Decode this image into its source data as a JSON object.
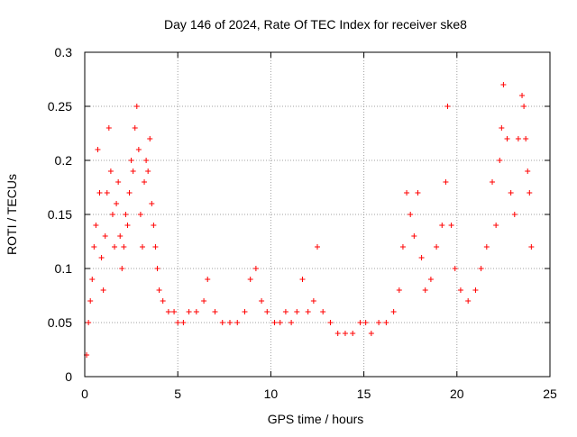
{
  "chart_data": {
    "type": "scatter",
    "title": "Day 146 of 2024, Rate Of TEC Index for receiver ske8",
    "xlabel": "GPS time / hours",
    "ylabel": "ROTI / TECUs",
    "xlim": [
      0,
      25
    ],
    "ylim": [
      0,
      0.3
    ],
    "xticks": [
      0,
      5,
      10,
      15,
      20,
      25
    ],
    "xtick_labels": [
      "0",
      "5",
      "10",
      "15",
      "20",
      "25"
    ],
    "yticks": [
      0,
      0.05,
      0.1,
      0.15,
      0.2,
      0.25,
      0.3
    ],
    "ytick_labels": [
      "0",
      "0.05",
      "0.1",
      "0.15",
      "0.2",
      "0.25",
      "0.3"
    ],
    "grid": true,
    "marker": "+",
    "color": "#ff0000",
    "series": [
      {
        "name": "ROTI",
        "points": [
          [
            0.1,
            0.02
          ],
          [
            0.2,
            0.05
          ],
          [
            0.3,
            0.07
          ],
          [
            0.4,
            0.09
          ],
          [
            0.5,
            0.12
          ],
          [
            0.6,
            0.14
          ],
          [
            0.7,
            0.21
          ],
          [
            0.8,
            0.17
          ],
          [
            0.9,
            0.11
          ],
          [
            1.0,
            0.08
          ],
          [
            1.1,
            0.13
          ],
          [
            1.2,
            0.17
          ],
          [
            1.3,
            0.23
          ],
          [
            1.4,
            0.19
          ],
          [
            1.5,
            0.15
          ],
          [
            1.6,
            0.12
          ],
          [
            1.7,
            0.16
          ],
          [
            1.8,
            0.18
          ],
          [
            1.9,
            0.13
          ],
          [
            2.0,
            0.1
          ],
          [
            2.1,
            0.12
          ],
          [
            2.2,
            0.15
          ],
          [
            2.3,
            0.14
          ],
          [
            2.4,
            0.17
          ],
          [
            2.5,
            0.2
          ],
          [
            2.6,
            0.19
          ],
          [
            2.7,
            0.23
          ],
          [
            2.8,
            0.25
          ],
          [
            2.9,
            0.21
          ],
          [
            3.0,
            0.15
          ],
          [
            3.1,
            0.12
          ],
          [
            3.2,
            0.18
          ],
          [
            3.3,
            0.2
          ],
          [
            3.4,
            0.19
          ],
          [
            3.5,
            0.22
          ],
          [
            3.6,
            0.16
          ],
          [
            3.7,
            0.14
          ],
          [
            3.8,
            0.12
          ],
          [
            3.9,
            0.1
          ],
          [
            4.0,
            0.08
          ],
          [
            4.2,
            0.07
          ],
          [
            4.5,
            0.06
          ],
          [
            4.8,
            0.06
          ],
          [
            5.0,
            0.05
          ],
          [
            5.3,
            0.05
          ],
          [
            5.6,
            0.06
          ],
          [
            6.0,
            0.06
          ],
          [
            6.4,
            0.07
          ],
          [
            6.6,
            0.09
          ],
          [
            7.0,
            0.06
          ],
          [
            7.4,
            0.05
          ],
          [
            7.8,
            0.05
          ],
          [
            8.2,
            0.05
          ],
          [
            8.6,
            0.06
          ],
          [
            8.9,
            0.09
          ],
          [
            9.2,
            0.1
          ],
          [
            9.5,
            0.07
          ],
          [
            9.8,
            0.06
          ],
          [
            10.2,
            0.05
          ],
          [
            10.5,
            0.05
          ],
          [
            10.8,
            0.06
          ],
          [
            11.1,
            0.05
          ],
          [
            11.4,
            0.06
          ],
          [
            11.7,
            0.09
          ],
          [
            12.0,
            0.06
          ],
          [
            12.3,
            0.07
          ],
          [
            12.5,
            0.12
          ],
          [
            12.8,
            0.06
          ],
          [
            13.2,
            0.05
          ],
          [
            13.6,
            0.04
          ],
          [
            14.0,
            0.04
          ],
          [
            14.4,
            0.04
          ],
          [
            14.8,
            0.05
          ],
          [
            15.1,
            0.05
          ],
          [
            15.4,
            0.04
          ],
          [
            15.8,
            0.05
          ],
          [
            16.2,
            0.05
          ],
          [
            16.6,
            0.06
          ],
          [
            16.9,
            0.08
          ],
          [
            17.1,
            0.12
          ],
          [
            17.3,
            0.17
          ],
          [
            17.5,
            0.15
          ],
          [
            17.7,
            0.13
          ],
          [
            17.9,
            0.17
          ],
          [
            18.1,
            0.11
          ],
          [
            18.3,
            0.08
          ],
          [
            18.6,
            0.09
          ],
          [
            18.9,
            0.12
          ],
          [
            19.2,
            0.14
          ],
          [
            19.4,
            0.18
          ],
          [
            19.5,
            0.25
          ],
          [
            19.7,
            0.14
          ],
          [
            19.9,
            0.1
          ],
          [
            20.2,
            0.08
          ],
          [
            20.6,
            0.07
          ],
          [
            21.0,
            0.08
          ],
          [
            21.3,
            0.1
          ],
          [
            21.6,
            0.12
          ],
          [
            21.9,
            0.18
          ],
          [
            22.1,
            0.14
          ],
          [
            22.3,
            0.2
          ],
          [
            22.4,
            0.23
          ],
          [
            22.5,
            0.27
          ],
          [
            22.7,
            0.22
          ],
          [
            22.9,
            0.17
          ],
          [
            23.1,
            0.15
          ],
          [
            23.3,
            0.22
          ],
          [
            23.5,
            0.26
          ],
          [
            23.6,
            0.25
          ],
          [
            23.7,
            0.22
          ],
          [
            23.8,
            0.19
          ],
          [
            23.9,
            0.17
          ],
          [
            24.0,
            0.12
          ]
        ]
      }
    ]
  }
}
